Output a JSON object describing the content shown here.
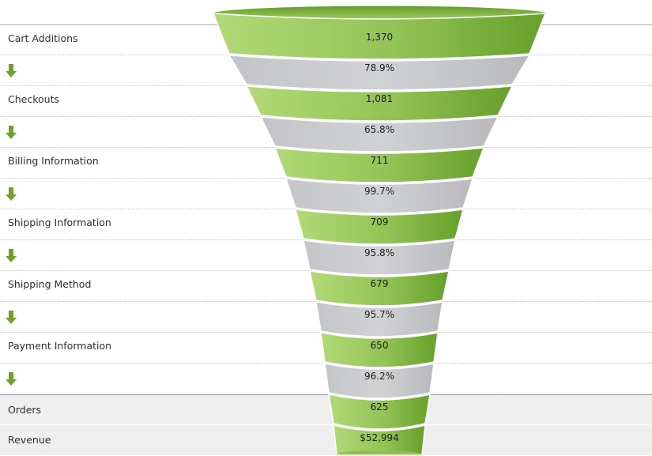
{
  "chart_data": {
    "type": "funnel",
    "stages": [
      {
        "label": "Cart Additions",
        "value": "1,370",
        "conversion": "78.9%"
      },
      {
        "label": "Checkouts",
        "value": "1,081",
        "conversion": "65.8%"
      },
      {
        "label": "Billing Information",
        "value": "711",
        "conversion": "99.7%"
      },
      {
        "label": "Shipping Information",
        "value": "709",
        "conversion": "95.8%"
      },
      {
        "label": "Shipping Method",
        "value": "679",
        "conversion": "95.7%"
      },
      {
        "label": "Payment Information",
        "value": "650",
        "conversion": "96.2%"
      }
    ],
    "totals": [
      {
        "label": "Orders",
        "value": "625"
      },
      {
        "label": "Revenue",
        "value": "$52,994"
      }
    ]
  },
  "colors": {
    "stage_green_light": "#b2d977",
    "stage_green_dark": "#66a02a",
    "conversion_gray": "#d1d2d4",
    "arrow_green": "#6ea22e"
  },
  "icons": {
    "step_arrow": "down-arrow-icon"
  }
}
